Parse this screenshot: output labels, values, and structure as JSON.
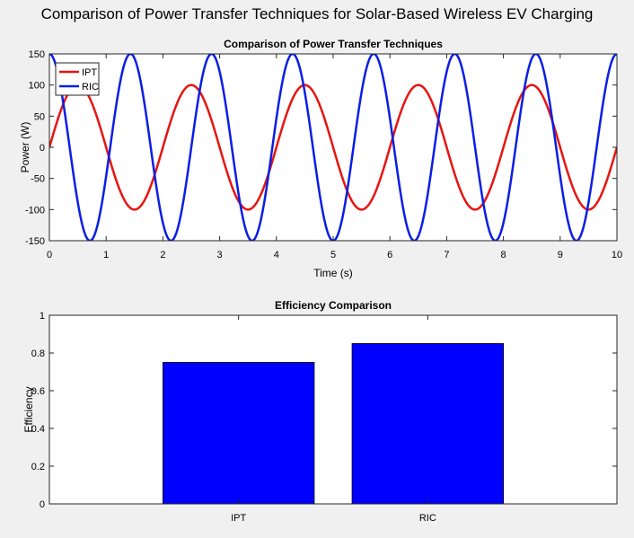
{
  "figure": {
    "suptitle": "Comparison of Power Transfer Techniques for Solar-Based Wireless EV Charging"
  },
  "chart_data": [
    {
      "type": "line",
      "title": "Comparison of Power Transfer Techniques",
      "xlabel": "Time (s)",
      "ylabel": "Power (W)",
      "xlim": [
        0,
        10
      ],
      "ylim": [
        -150,
        150
      ],
      "xticks": [
        0,
        1,
        2,
        3,
        4,
        5,
        6,
        7,
        8,
        9,
        10
      ],
      "yticks": [
        -150,
        -100,
        -50,
        0,
        50,
        100,
        150
      ],
      "grid": false,
      "legend_position": "top-left",
      "series": [
        {
          "name": "IPT",
          "color": "#e8140f",
          "amplitude": 100,
          "period": 2,
          "phase": "sine",
          "x_range": [
            0,
            10
          ]
        },
        {
          "name": "RIC",
          "color": "#0a1ee6",
          "amplitude": 150,
          "period": 1.4286,
          "phase": "cosine",
          "x_range": [
            0,
            10
          ]
        }
      ]
    },
    {
      "type": "bar",
      "title": "Efficiency Comparison",
      "xlabel": "",
      "ylabel": "Efficiency",
      "categories": [
        "IPT",
        "RIC"
      ],
      "values": [
        0.75,
        0.85
      ],
      "ylim": [
        0,
        1
      ],
      "yticks": [
        0,
        0.2,
        0.4,
        0.6,
        0.8,
        1
      ],
      "bar_color": "#0000ff",
      "grid": false
    }
  ]
}
